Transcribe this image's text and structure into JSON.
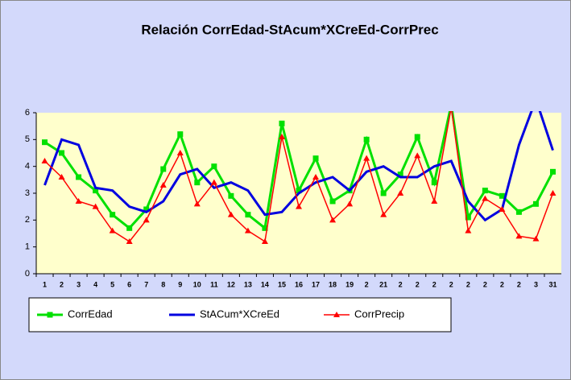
{
  "chart_data": {
    "type": "line",
    "title": "Relación CorrEdad-StAcum*XCreEd-CorrPrec",
    "categories": [
      "1",
      "2",
      "3",
      "4",
      "5",
      "6",
      "7",
      "8",
      "9",
      "10",
      "11",
      "12",
      "13",
      "14",
      "15",
      "16",
      "17",
      "18",
      "19",
      "2",
      "21",
      "2",
      "2",
      "2",
      "2",
      "2",
      "2",
      "2",
      "2",
      "3",
      "31"
    ],
    "series": [
      {
        "name": "CorrEdad",
        "color": "#00e000",
        "marker": "square",
        "values": [
          4.9,
          4.5,
          3.6,
          3.1,
          2.2,
          1.7,
          2.4,
          3.9,
          5.2,
          3.4,
          4.0,
          2.9,
          2.2,
          1.7,
          5.6,
          3.1,
          4.3,
          2.7,
          3.1,
          5.0,
          3.0,
          3.7,
          5.1,
          3.4,
          6.3,
          2.1,
          3.1,
          2.9,
          2.3,
          2.6,
          3.8
        ]
      },
      {
        "name": "StACum*XCreEd",
        "color": "#0000e0",
        "marker": "none",
        "values": [
          3.3,
          5.0,
          4.8,
          3.2,
          3.1,
          2.5,
          2.3,
          2.7,
          3.7,
          3.9,
          3.2,
          3.4,
          3.1,
          2.2,
          2.3,
          3.0,
          3.4,
          3.6,
          3.1,
          3.8,
          4.0,
          3.6,
          3.6,
          4.0,
          4.2,
          2.7,
          2.0,
          2.4,
          4.8,
          6.5,
          4.6
        ]
      },
      {
        "name": "CorrPrecip",
        "color": "#ff0000",
        "marker": "triangle",
        "values": [
          4.2,
          3.6,
          2.7,
          2.5,
          1.6,
          1.2,
          2.0,
          3.3,
          4.5,
          2.6,
          3.4,
          2.2,
          1.6,
          1.2,
          5.1,
          2.5,
          3.6,
          2.0,
          2.6,
          4.3,
          2.2,
          3.0,
          4.4,
          2.7,
          6.2,
          1.6,
          2.8,
          2.4,
          1.4,
          1.3,
          3.0
        ]
      }
    ],
    "ylim": [
      0,
      6
    ],
    "yticks": [
      0,
      1,
      2,
      3,
      4,
      5,
      6
    ]
  }
}
